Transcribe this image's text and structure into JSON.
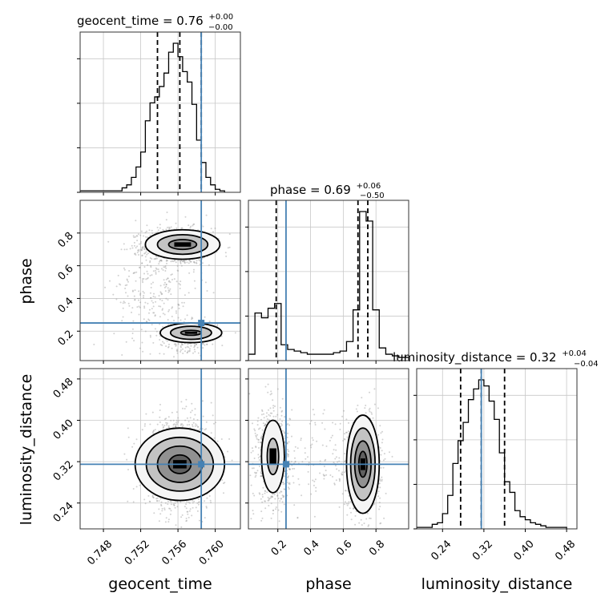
{
  "chart_data": {
    "type": "corner",
    "parameters": [
      "geocent_time",
      "phase",
      "luminosity_distance"
    ],
    "colors": {
      "truth": "#4682b4",
      "hist": "#000000",
      "scatter": "#9a9a9a",
      "grid": "#c8c8c8"
    },
    "truth": {
      "geocent_time": 0.7585,
      "phase": 0.25,
      "luminosity_distance": 0.315
    },
    "ranges": {
      "geocent_time": [
        0.7455,
        0.7627
      ],
      "phase": [
        0.02,
        1.0
      ],
      "luminosity_distance": [
        0.19,
        0.5
      ]
    },
    "xticks": {
      "geocent_time": [
        0.748,
        0.752,
        0.756,
        0.76
      ],
      "phase": [
        0.2,
        0.4,
        0.6,
        0.8
      ],
      "luminosity_distance": [
        0.24,
        0.32,
        0.4,
        0.48
      ]
    },
    "xtick_labels": {
      "geocent_time": [
        "0.748",
        "0.752",
        "0.756",
        "0.760"
      ],
      "phase": [
        "0.2",
        "0.4",
        "0.6",
        "0.8"
      ],
      "luminosity_distance": [
        "0.24",
        "0.32",
        "0.40",
        "0.48"
      ]
    },
    "yticks": {
      "phase": [
        0.2,
        0.4,
        0.6,
        0.8
      ],
      "luminosity_distance": [
        0.24,
        0.32,
        0.4,
        0.48
      ]
    },
    "ytick_labels": {
      "phase": [
        "0.2",
        "0.4",
        "0.6",
        "0.8"
      ],
      "luminosity_distance": [
        "0.24",
        "0.32",
        "0.40",
        "0.48"
      ]
    },
    "xlabels": {
      "geocent_time": "geocent_time",
      "phase": "phase",
      "luminosity_distance": "luminosity_distance"
    },
    "ylabels": {
      "phase": "phase",
      "luminosity_distance": "luminosity_distance"
    },
    "titles": {
      "geocent_time": {
        "prefix": "geocent_time = 0.76",
        "sup": "+0.00",
        "sub": "−0.00"
      },
      "phase": {
        "prefix": "phase = 0.69",
        "sup": "+0.06",
        "sub": "−0.50"
      },
      "luminosity_distance": {
        "prefix": "luminosity_distance = 0.32",
        "sup": "+0.04",
        "sub": "−0.04"
      }
    },
    "quantiles": {
      "geocent_time": [
        0.7538,
        0.7562,
        0.7585
      ],
      "phase": [
        0.19,
        0.69,
        0.75
      ],
      "luminosity_distance": [
        0.275,
        0.315,
        0.36
      ]
    },
    "histograms": {
      "geocent_time": {
        "edges": [
          0.7455,
          0.75,
          0.7505,
          0.751,
          0.7515,
          0.752,
          0.7525,
          0.753,
          0.7535,
          0.754,
          0.7545,
          0.755,
          0.7555,
          0.756,
          0.7565,
          0.757,
          0.7575,
          0.758,
          0.7585,
          0.759,
          0.7595,
          0.76,
          0.7605,
          0.761
        ],
        "counts": [
          1,
          3,
          5,
          10,
          17,
          27,
          48,
          60,
          64,
          71,
          80,
          94,
          100,
          91,
          81,
          74,
          59,
          35,
          20,
          10,
          5,
          2,
          1
        ]
      },
      "phase": {
        "edges": [
          0.02,
          0.06,
          0.1,
          0.14,
          0.18,
          0.22,
          0.26,
          0.3,
          0.34,
          0.38,
          0.42,
          0.46,
          0.5,
          0.54,
          0.58,
          0.62,
          0.66,
          0.7,
          0.74,
          0.78,
          0.82,
          0.86,
          0.9,
          0.94,
          1.0
        ],
        "counts": [
          4,
          30,
          27,
          33,
          36,
          10,
          7,
          6,
          5,
          4,
          4,
          4,
          4,
          5,
          6,
          12,
          32,
          94,
          88,
          32,
          8,
          4,
          3,
          2
        ]
      },
      "luminosity_distance": {
        "edges": [
          0.19,
          0.22,
          0.23,
          0.24,
          0.25,
          0.26,
          0.27,
          0.28,
          0.29,
          0.3,
          0.31,
          0.32,
          0.33,
          0.34,
          0.35,
          0.36,
          0.37,
          0.38,
          0.39,
          0.4,
          0.41,
          0.42,
          0.43,
          0.44,
          0.48
        ],
        "counts": [
          1,
          3,
          4,
          10,
          22,
          43,
          58,
          70,
          85,
          92,
          98,
          94,
          84,
          72,
          50,
          31,
          24,
          12,
          8,
          6,
          4,
          3,
          2,
          1
        ]
      }
    },
    "clusters": {
      "phase_vs_geocent_time": [
        {
          "n": 1100,
          "mx": 0.756,
          "sx": 0.00185,
          "my": 0.72,
          "sy": 0.055
        },
        {
          "n": 320,
          "mx": 0.7572,
          "sx": 0.00155,
          "my": 0.17,
          "sy": 0.045
        },
        {
          "n": 260,
          "mx": 0.7535,
          "sx": 0.0022,
          "my": 0.45,
          "sy": 0.18
        }
      ],
      "luminosity_distance_vs_geocent_time": [
        {
          "n": 1500,
          "mx": 0.7562,
          "sx": 0.00185,
          "my": 0.315,
          "sy": 0.042
        }
      ],
      "luminosity_distance_vs_phase": [
        {
          "n": 700,
          "mx": 0.17,
          "sx": 0.05,
          "my": 0.33,
          "sy": 0.045
        },
        {
          "n": 900,
          "mx": 0.72,
          "sx": 0.055,
          "my": 0.315,
          "sy": 0.042
        },
        {
          "n": 150,
          "mx": 0.45,
          "sx": 0.17,
          "my": 0.33,
          "sy": 0.06
        }
      ]
    },
    "contours": {
      "phase_vs_geocent_time": [
        {
          "cx": 0.7565,
          "cy": 0.73,
          "rx": [
            0.0015,
            0.0027,
            0.004
          ],
          "ry": [
            0.03,
            0.06,
            0.09
          ],
          "level": [
            1,
            2,
            3
          ]
        },
        {
          "cx": 0.7574,
          "cy": 0.19,
          "rx": [
            0.0011,
            0.0022,
            0.0033
          ],
          "ry": [
            0.015,
            0.04,
            0.06
          ],
          "level": [
            1,
            2,
            3
          ]
        }
      ],
      "luminosity_distance_vs_geocent_time": [
        {
          "cx": 0.7562,
          "cy": 0.315,
          "rx": [
            0.0012,
            0.0024,
            0.0036,
            0.0048
          ],
          "ry": [
            0.018,
            0.035,
            0.052,
            0.07
          ],
          "level": [
            1,
            2,
            3,
            4
          ]
        }
      ],
      "luminosity_distance_vs_phase": [
        {
          "cx": 0.17,
          "cy": 0.33,
          "rx": [
            0.035,
            0.07
          ],
          "ry": [
            0.035,
            0.07
          ],
          "level": [
            1,
            2
          ]
        },
        {
          "cx": 0.72,
          "cy": 0.315,
          "rx": [
            0.025,
            0.05,
            0.075,
            0.1
          ],
          "ry": [
            0.025,
            0.045,
            0.07,
            0.095
          ],
          "level": [
            1,
            2,
            3,
            4
          ]
        }
      ]
    }
  }
}
